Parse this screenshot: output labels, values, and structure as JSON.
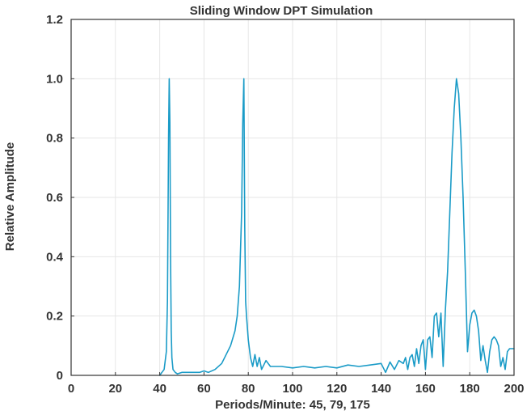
{
  "chart_data": {
    "type": "line",
    "title": "Sliding Window DPT Simulation",
    "xlabel": "Periods/Minute: 45, 79, 175",
    "ylabel": "Relative Amplitude",
    "xlim": [
      0,
      200
    ],
    "ylim": [
      0,
      1.2
    ],
    "xticks": [
      0,
      20,
      40,
      60,
      80,
      100,
      120,
      140,
      160,
      180,
      200
    ],
    "yticks": [
      0,
      0.2,
      0.4,
      0.6,
      0.8,
      1.0,
      1.2
    ],
    "ytick_labels": [
      "0",
      "0.2",
      "0.4",
      "0.6",
      "0.8",
      "1.0",
      "1.2"
    ],
    "grid": true,
    "line_color": "#1a9bc7",
    "series": [
      {
        "x": [
          40,
          41,
          42,
          43,
          43.5,
          44,
          44.3,
          44.6,
          44.9,
          45.2,
          45.5,
          46,
          47,
          48,
          50,
          52,
          55,
          58,
          60,
          62,
          65,
          68,
          70,
          72,
          74,
          75,
          76,
          77,
          77.5,
          78,
          78.4,
          78.8,
          79.2,
          80,
          81,
          82,
          83,
          84,
          85,
          86,
          88,
          90,
          95,
          100,
          105,
          110,
          115,
          120,
          125,
          130,
          135,
          140,
          142,
          144,
          146,
          148,
          150,
          151,
          152,
          153,
          154,
          155,
          156,
          157,
          158,
          159,
          160,
          161,
          162,
          163,
          164,
          165,
          166,
          167,
          168,
          169,
          170,
          171,
          172,
          173,
          174,
          175,
          176,
          177,
          178,
          179,
          180,
          181,
          182,
          183,
          184,
          185,
          186,
          187,
          188,
          189,
          190,
          191,
          192,
          193,
          194,
          195,
          196,
          197,
          198,
          199,
          200
        ],
        "y": [
          0,
          0.01,
          0.02,
          0.08,
          0.25,
          0.8,
          1.0,
          0.85,
          0.4,
          0.15,
          0.06,
          0.02,
          0.01,
          0.005,
          0.01,
          0.01,
          0.01,
          0.01,
          0.015,
          0.01,
          0.02,
          0.04,
          0.07,
          0.1,
          0.15,
          0.2,
          0.3,
          0.55,
          0.85,
          1.0,
          0.5,
          0.25,
          0.2,
          0.12,
          0.06,
          0.03,
          0.07,
          0.03,
          0.06,
          0.02,
          0.05,
          0.03,
          0.03,
          0.025,
          0.03,
          0.025,
          0.03,
          0.025,
          0.035,
          0.03,
          0.035,
          0.04,
          0.01,
          0.045,
          0.02,
          0.05,
          0.04,
          0.06,
          0.02,
          0.06,
          0.07,
          0.03,
          0.09,
          0.04,
          0.1,
          0.12,
          0.02,
          0.12,
          0.13,
          0.06,
          0.2,
          0.21,
          0.13,
          0.21,
          0.03,
          0.22,
          0.35,
          0.55,
          0.75,
          0.9,
          1.0,
          0.95,
          0.8,
          0.6,
          0.35,
          0.08,
          0.17,
          0.21,
          0.22,
          0.2,
          0.15,
          0.05,
          0.1,
          0.05,
          0.01,
          0.08,
          0.12,
          0.13,
          0.12,
          0.1,
          0.03,
          0.06,
          0.02,
          0.08,
          0.09,
          0.09,
          0.09
        ]
      }
    ]
  }
}
